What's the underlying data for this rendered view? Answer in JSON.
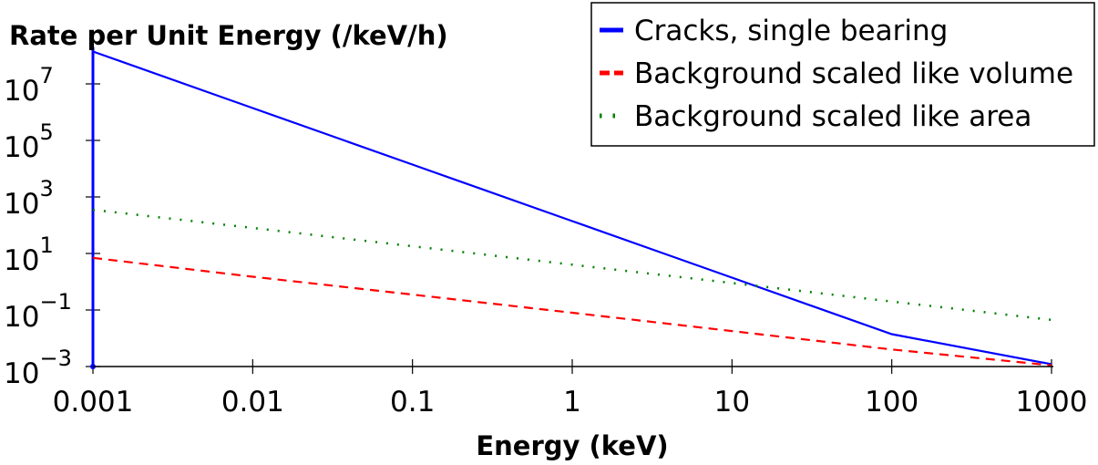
{
  "chart_data": {
    "type": "line",
    "title": "",
    "xlabel": "Energy (keV)",
    "ylabel": "Rate per Unit Energy (/keV/h)",
    "x_scale": "log",
    "y_scale": "log",
    "xlim": [
      0.001,
      1000
    ],
    "ylim": [
      0.001,
      200000000
    ],
    "x_ticks": [
      "0.001",
      "0.01",
      "0.1",
      "1",
      "10",
      "100",
      "1000"
    ],
    "y_ticks": [
      {
        "value": 0.001,
        "base": "10",
        "exp": "−3"
      },
      {
        "value": 0.1,
        "base": "10",
        "exp": "−1"
      },
      {
        "value": 10,
        "base": "10",
        "exp": "1"
      },
      {
        "value": 1000,
        "base": "10",
        "exp": "3"
      },
      {
        "value": 100000,
        "base": "10",
        "exp": "5"
      },
      {
        "value": 10000000,
        "base": "10",
        "exp": "7"
      }
    ],
    "grid": false,
    "legend_position": "top-right",
    "series": [
      {
        "name": "Cracks, single bearing",
        "color": "#0000ff",
        "style": "solid",
        "x": [
          0.001,
          0.01,
          0.1,
          1,
          10,
          100,
          1000
        ],
        "y": [
          140000000,
          1400000,
          14000,
          140,
          1.4,
          0.014,
          0.0012
        ]
      },
      {
        "name": "Background scaled like volume",
        "color": "#ff0000",
        "style": "dashed",
        "x": [
          0.001,
          0.01,
          0.1,
          1,
          10,
          100,
          1000
        ],
        "y": [
          7,
          1.5,
          0.35,
          0.08,
          0.018,
          0.004,
          0.0011
        ]
      },
      {
        "name": "Background scaled like area",
        "color": "#008000",
        "style": "dotted",
        "x": [
          0.001,
          0.01,
          0.1,
          1,
          10,
          100,
          1000
        ],
        "y": [
          350,
          80,
          18,
          4,
          0.9,
          0.2,
          0.045
        ]
      }
    ],
    "vertical_marker": {
      "x": 0.001,
      "color": "#0000ff"
    }
  }
}
